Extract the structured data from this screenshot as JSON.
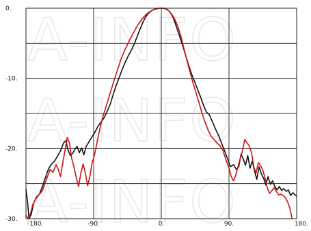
{
  "chart_data": {
    "type": "line",
    "title": "",
    "xlabel": "",
    "ylabel": "",
    "xlim": [
      -180,
      180
    ],
    "ylim": [
      -30,
      0
    ],
    "x_ticks": [
      -180,
      -90,
      0,
      90,
      180
    ],
    "x_tick_labels": [
      "-180.",
      "-90.",
      "0.",
      "90.",
      "180."
    ],
    "y_ticks": [
      0,
      -10,
      -20,
      -30
    ],
    "y_tick_labels": [
      "0.",
      "-10.",
      "-20.",
      "-30."
    ],
    "grid": true,
    "watermark": "A-INFO",
    "series": [
      {
        "color": "#111111",
        "points": [
          [
            -180,
            -25.8
          ],
          [
            -178,
            -27.5
          ],
          [
            -176,
            -30
          ],
          [
            -173,
            -29.4
          ],
          [
            -170,
            -27.8
          ],
          [
            -166,
            -26.9
          ],
          [
            -162,
            -26.5
          ],
          [
            -158,
            -25.4
          ],
          [
            -154,
            -24.1
          ],
          [
            -150,
            -22.9
          ],
          [
            -146,
            -22.2
          ],
          [
            -142,
            -21.8
          ],
          [
            -138,
            -21.1
          ],
          [
            -134,
            -20.3
          ],
          [
            -130,
            -19.2
          ],
          [
            -127,
            -18.9
          ],
          [
            -124,
            -20.2
          ],
          [
            -121,
            -21.0
          ],
          [
            -118,
            -20.7
          ],
          [
            -115,
            -20.1
          ],
          [
            -112,
            -19.7
          ],
          [
            -109,
            -20.6
          ],
          [
            -106,
            -19.9
          ],
          [
            -103,
            -20.9
          ],
          [
            -100,
            -19.7
          ],
          [
            -96,
            -19.0
          ],
          [
            -92,
            -18.3
          ],
          [
            -88,
            -17.6
          ],
          [
            -84,
            -16.8
          ],
          [
            -80,
            -16.2
          ],
          [
            -76,
            -15.6
          ],
          [
            -72,
            -14.7
          ],
          [
            -68,
            -13.7
          ],
          [
            -64,
            -12.3
          ],
          [
            -60,
            -11.0
          ],
          [
            -56,
            -9.9
          ],
          [
            -52,
            -8.7
          ],
          [
            -48,
            -7.7
          ],
          [
            -44,
            -6.8
          ],
          [
            -40,
            -6.0
          ],
          [
            -36,
            -5.1
          ],
          [
            -32,
            -4.0
          ],
          [
            -28,
            -2.9
          ],
          [
            -24,
            -1.9
          ],
          [
            -20,
            -1.1
          ],
          [
            -16,
            -0.6
          ],
          [
            -12,
            -0.3
          ],
          [
            -8,
            -0.1
          ],
          [
            -4,
            0
          ],
          [
            0,
            0
          ],
          [
            4,
            0
          ],
          [
            8,
            -0.2
          ],
          [
            12,
            -0.6
          ],
          [
            16,
            -1.4
          ],
          [
            20,
            -2.6
          ],
          [
            24,
            -3.9
          ],
          [
            28,
            -5.2
          ],
          [
            32,
            -6.6
          ],
          [
            36,
            -8.0
          ],
          [
            40,
            -9.3
          ],
          [
            44,
            -10.4
          ],
          [
            48,
            -11.5
          ],
          [
            52,
            -12.6
          ],
          [
            56,
            -13.8
          ],
          [
            60,
            -14.8
          ],
          [
            64,
            -15.2
          ],
          [
            68,
            -16.2
          ],
          [
            72,
            -17.2
          ],
          [
            76,
            -18.1
          ],
          [
            80,
            -19.2
          ],
          [
            84,
            -20.3
          ],
          [
            88,
            -21.4
          ],
          [
            92,
            -22.6
          ],
          [
            96,
            -22.3
          ],
          [
            100,
            -23.0
          ],
          [
            103,
            -22.6
          ],
          [
            106,
            -20.8
          ],
          [
            109,
            -21.5
          ],
          [
            112,
            -22.4
          ],
          [
            115,
            -21.0
          ],
          [
            118,
            -22.8
          ],
          [
            121,
            -21.8
          ],
          [
            124,
            -23.2
          ],
          [
            127,
            -24.4
          ],
          [
            130,
            -22.6
          ],
          [
            133,
            -23.6
          ],
          [
            136,
            -24.2
          ],
          [
            139,
            -25.2
          ],
          [
            142,
            -24.0
          ],
          [
            145,
            -25.1
          ],
          [
            148,
            -24.6
          ],
          [
            151,
            -25.4
          ],
          [
            154,
            -25.9
          ],
          [
            157,
            -25.4
          ],
          [
            160,
            -26.0
          ],
          [
            163,
            -25.7
          ],
          [
            166,
            -26.1
          ],
          [
            169,
            -25.9
          ],
          [
            172,
            -26.7
          ],
          [
            175,
            -26.3
          ],
          [
            178,
            -26.6
          ],
          [
            180,
            -26.8
          ]
        ]
      },
      {
        "color": "#cc1111",
        "points": [
          [
            -180,
            -29.5
          ],
          [
            -177,
            -30
          ],
          [
            -174,
            -29.3
          ],
          [
            -171,
            -28.0
          ],
          [
            -168,
            -27.3
          ],
          [
            -165,
            -26.9
          ],
          [
            -162,
            -26.5
          ],
          [
            -158,
            -26.0
          ],
          [
            -155,
            -25.0
          ],
          [
            -151,
            -23.9
          ],
          [
            -148,
            -23.0
          ],
          [
            -144,
            -23.4
          ],
          [
            -140,
            -22.3
          ],
          [
            -137,
            -23.0
          ],
          [
            -134,
            -24.0
          ],
          [
            -131,
            -22.0
          ],
          [
            -128,
            -20.2
          ],
          [
            -125,
            -18.4
          ],
          [
            -122,
            -19.3
          ],
          [
            -119,
            -21.5
          ],
          [
            -116,
            -22.7
          ],
          [
            -113,
            -24.2
          ],
          [
            -110,
            -25.4
          ],
          [
            -107,
            -23.5
          ],
          [
            -104,
            -22.2
          ],
          [
            -101,
            -23.5
          ],
          [
            -98,
            -25.3
          ],
          [
            -95,
            -24.0
          ],
          [
            -92,
            -22.0
          ],
          [
            -89,
            -21.0
          ],
          [
            -86,
            -19.4
          ],
          [
            -83,
            -17.8
          ],
          [
            -80,
            -16.4
          ],
          [
            -77,
            -15.2
          ],
          [
            -74,
            -14.2
          ],
          [
            -70,
            -12.8
          ],
          [
            -66,
            -11.4
          ],
          [
            -62,
            -10.0
          ],
          [
            -58,
            -8.7
          ],
          [
            -54,
            -7.4
          ],
          [
            -50,
            -6.3
          ],
          [
            -46,
            -5.4
          ],
          [
            -42,
            -4.5
          ],
          [
            -38,
            -3.7
          ],
          [
            -34,
            -2.9
          ],
          [
            -30,
            -2.2
          ],
          [
            -26,
            -1.6
          ],
          [
            -22,
            -1.1
          ],
          [
            -18,
            -0.7
          ],
          [
            -14,
            -0.4
          ],
          [
            -10,
            -0.2
          ],
          [
            -6,
            -0.1
          ],
          [
            -2,
            0
          ],
          [
            2,
            0
          ],
          [
            6,
            -0.1
          ],
          [
            10,
            -0.4
          ],
          [
            14,
            -0.9
          ],
          [
            18,
            -1.6
          ],
          [
            22,
            -2.6
          ],
          [
            26,
            -4.0
          ],
          [
            30,
            -5.7
          ],
          [
            34,
            -7.4
          ],
          [
            38,
            -9.0
          ],
          [
            42,
            -10.6
          ],
          [
            46,
            -12.0
          ],
          [
            50,
            -13.4
          ],
          [
            54,
            -14.9
          ],
          [
            58,
            -16.2
          ],
          [
            62,
            -17.3
          ],
          [
            66,
            -18.2
          ],
          [
            70,
            -18.7
          ],
          [
            74,
            -19.2
          ],
          [
            78,
            -19.6
          ],
          [
            82,
            -20.3
          ],
          [
            86,
            -21.6
          ],
          [
            90,
            -22.8
          ],
          [
            93,
            -24.0
          ],
          [
            96,
            -24.6
          ],
          [
            99,
            -23.8
          ],
          [
            102,
            -22.6
          ],
          [
            105,
            -21.4
          ],
          [
            108,
            -20.3
          ],
          [
            111,
            -18.7
          ],
          [
            114,
            -19.2
          ],
          [
            117,
            -19.6
          ],
          [
            120,
            -20.6
          ],
          [
            123,
            -22.6
          ],
          [
            126,
            -23.5
          ],
          [
            129,
            -22.0
          ],
          [
            132,
            -22.4
          ],
          [
            135,
            -23.1
          ],
          [
            138,
            -24.2
          ],
          [
            141,
            -25.6
          ],
          [
            144,
            -26.4
          ],
          [
            147,
            -26.0
          ],
          [
            150,
            -25.6
          ],
          [
            153,
            -26.1
          ],
          [
            156,
            -26.6
          ],
          [
            159,
            -26.5
          ],
          [
            162,
            -26.7
          ],
          [
            165,
            -27.0
          ],
          [
            168,
            -27.6
          ],
          [
            171,
            -28.5
          ],
          [
            174,
            -30
          ]
        ]
      }
    ]
  }
}
